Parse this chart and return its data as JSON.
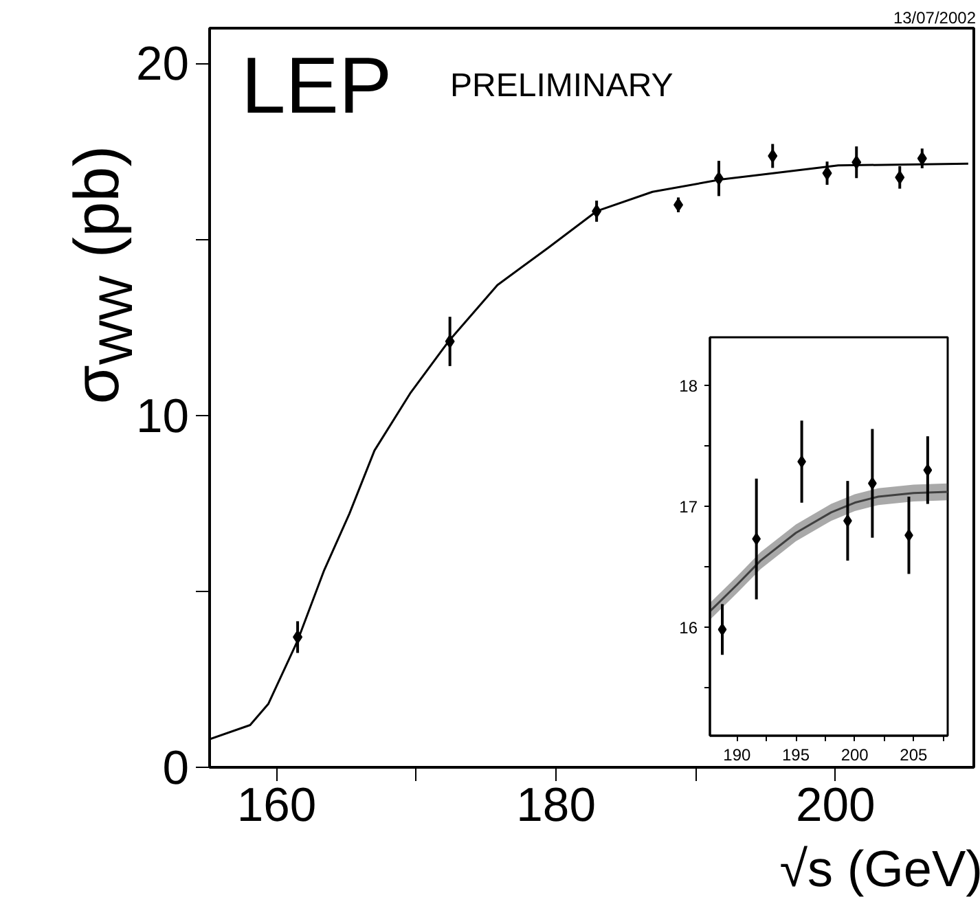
{
  "chart_data": [
    {
      "type": "scatter",
      "xlabel": "√s (GeV)",
      "ylabel": "σ$_{WW}$ (pb)",
      "annotations": [
        "LEP",
        "PRELIMINARY",
        "13/07/2002"
      ],
      "xlim": [
        155.2,
        209.9
      ],
      "ylim": [
        0,
        21
      ],
      "xticks": [
        160,
        {
          "value": 170,
          "label": null
        },
        180,
        {
          "value": 190,
          "label": null
        },
        200
      ],
      "yticks": [
        0,
        {
          "value": 5,
          "label": null
        },
        10,
        {
          "value": 15,
          "label": null
        },
        20
      ],
      "grid": false,
      "series": [
        {
          "type": "line",
          "color": "#000000",
          "x": [
            155.2,
            158.1,
            159.4,
            161.5,
            163.4,
            165.2,
            167.0,
            169.6,
            172.3,
            175.8,
            179.4,
            182.9,
            186.9,
            191.8,
            200.2,
            209.5
          ],
          "values": [
            0.8,
            1.2,
            1.8,
            3.6,
            5.6,
            7.2,
            9.0,
            10.65,
            12.1,
            13.7,
            14.75,
            15.8,
            16.35,
            16.7,
            17.1,
            17.15
          ]
        },
        {
          "color": "#000000",
          "marker": "diamond",
          "x": [
            161.5,
            172.4,
            182.9,
            188.75,
            191.65,
            195.5,
            199.4,
            201.5,
            204.6,
            206.2
          ],
          "values": [
            3.7,
            12.1,
            15.8,
            15.98,
            16.73,
            17.37,
            16.88,
            17.19,
            16.76,
            17.3
          ],
          "errors": [
            0.45,
            0.7,
            0.3,
            0.21,
            0.5,
            0.34,
            0.33,
            0.45,
            0.32,
            0.28
          ]
        }
      ]
    },
    {
      "type": "scatter",
      "xlim": [
        187.7,
        207.9
      ],
      "ylim": [
        15.1,
        18.4
      ],
      "xticks": [
        190,
        {
          "value": 192.5,
          "label": null
        },
        195,
        {
          "value": 197.5,
          "label": null
        },
        200,
        {
          "value": 202.5,
          "label": null
        },
        205,
        {
          "value": 207.5,
          "label": null
        }
      ],
      "yticks": [
        {
          "value": 15.5,
          "label": null
        },
        16,
        {
          "value": 16.5,
          "label": null
        },
        17,
        {
          "value": 17.5,
          "label": null
        },
        18
      ],
      "grid": false,
      "series": [
        {
          "type": "line",
          "color": "#404040",
          "x": [
            187.7,
            190,
            192,
            195,
            198,
            200,
            202,
            205,
            207.9
          ],
          "values": [
            16.13,
            16.35,
            16.55,
            16.78,
            16.95,
            17.03,
            17.08,
            17.11,
            17.12
          ],
          "lower": [
            16.06,
            16.28,
            16.48,
            16.71,
            16.88,
            16.96,
            17.01,
            17.04,
            17.05
          ],
          "upper": [
            16.2,
            16.42,
            16.62,
            16.85,
            17.02,
            17.1,
            17.15,
            17.18,
            17.19
          ]
        },
        {
          "color": "#000000",
          "marker": "diamond",
          "x": [
            188.75,
            191.65,
            195.5,
            199.4,
            201.5,
            204.6,
            206.2
          ],
          "values": [
            15.98,
            16.73,
            17.37,
            16.88,
            17.19,
            16.76,
            17.3
          ],
          "errors": [
            0.21,
            0.5,
            0.34,
            0.33,
            0.45,
            0.32,
            0.28
          ]
        }
      ]
    }
  ]
}
